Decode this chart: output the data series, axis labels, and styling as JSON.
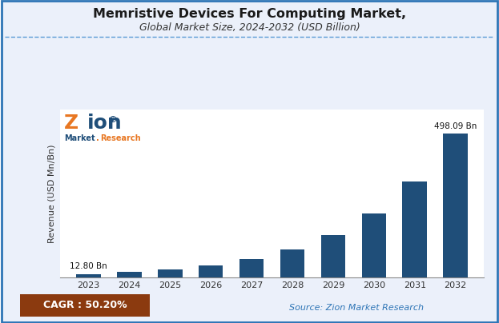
{
  "title_line1": "Memristive Devices For Computing Market,",
  "title_line2": "Global Market Size, 2024-2032 (USD Billion)",
  "years": [
    2023,
    2024,
    2025,
    2026,
    2027,
    2028,
    2029,
    2030,
    2031,
    2032
  ],
  "values": [
    12.8,
    19.23,
    28.89,
    43.4,
    65.19,
    97.91,
    147.06,
    220.89,
    331.78,
    498.09
  ],
  "bar_color": "#1f4e79",
  "ylabel": "Revenue (USD Mn/Bn)",
  "first_label": "12.80 Bn",
  "last_label": "498.09 Bn",
  "cagr_text": "CAGR : 50.20%",
  "source_text": "Source: Zion Market Research",
  "cagr_bg_color": "#8B3A0F",
  "cagr_text_color": "#ffffff",
  "source_text_color": "#2E75B6",
  "bg_color": "#EBF0FA",
  "plot_bg_color": "#ffffff",
  "title_color": "#1a1a1a",
  "ylim": [
    0,
    580
  ],
  "dashed_line_color": "#5b9bd5",
  "border_color": "#2E75B6"
}
